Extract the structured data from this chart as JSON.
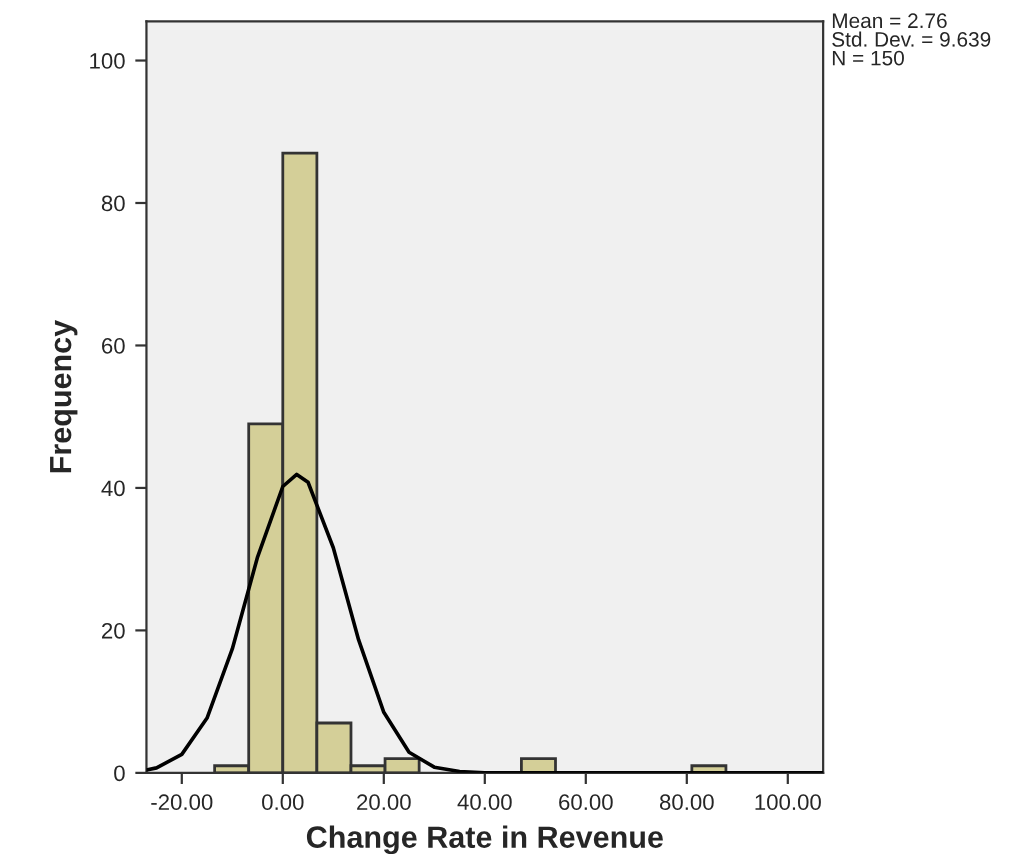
{
  "chart_data": {
    "type": "histogram",
    "xlabel": "Change Rate in Revenue",
    "ylabel": "Frequency",
    "series": [
      {
        "color": "#d4cf98",
        "bins": [
          -13.5,
          -6.75,
          0,
          6.75,
          13.5,
          20.25,
          27,
          33.75,
          40.5,
          47.25,
          54,
          60.75,
          67.5,
          74.25,
          81,
          87.75
        ],
        "values": [
          1,
          49,
          87,
          7,
          1,
          2,
          0,
          0,
          0,
          2,
          0,
          0,
          0,
          0,
          1
        ]
      },
      {
        "type": "line",
        "color": "#000000",
        "x": [
          -27,
          -25,
          -20,
          -15,
          -10,
          -5,
          0,
          2.76,
          5,
          10,
          15,
          20,
          25,
          30,
          35,
          40,
          50,
          107
        ],
        "values": [
          0.4,
          0.7,
          2.6,
          7.7,
          17.4,
          30.3,
          40.2,
          41.9,
          40.8,
          31.6,
          18.7,
          8.5,
          2.9,
          0.8,
          0.2,
          0,
          0,
          0
        ]
      }
    ],
    "xlim": [
      -27,
      107
    ],
    "ylim": [
      0,
      105.5
    ],
    "xticks": [
      {
        "value": -20,
        "label": "-20.00"
      },
      {
        "value": 0,
        "label": "0.00"
      },
      {
        "value": 20,
        "label": "20.00"
      },
      {
        "value": 40,
        "label": "40.00"
      },
      {
        "value": 60,
        "label": "60.00"
      },
      {
        "value": 80,
        "label": "80.00"
      },
      {
        "value": 100,
        "label": "100.00"
      }
    ],
    "yticks": [
      0,
      20,
      40,
      60,
      80,
      100
    ],
    "annotations": [
      "Mean = 2.76\nStd. Dev. = 9.639\nN = 150"
    ],
    "grid": false
  }
}
